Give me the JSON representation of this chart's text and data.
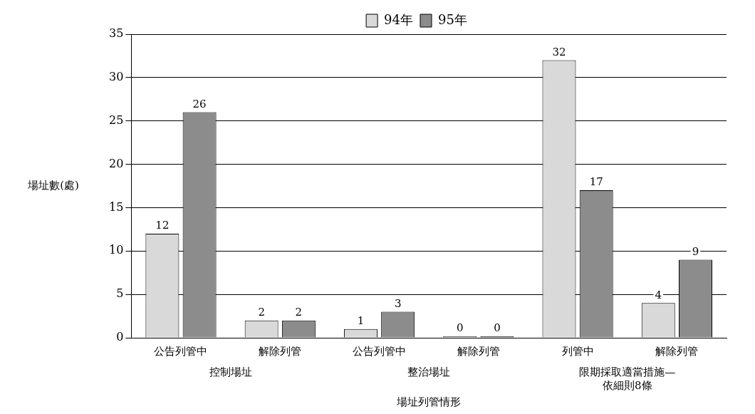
{
  "chart_data": {
    "type": "bar",
    "xlabel": "場址列管情形",
    "ylabel": "場址數(處)",
    "categories": [
      "公告列管中",
      "解除列管",
      "公告列管中",
      "解除列管",
      "列管中",
      "解除列管"
    ],
    "series": [
      {
        "name": "94年",
        "color": "#d9d9d9",
        "values": [
          12,
          2,
          1,
          0,
          32,
          4
        ]
      },
      {
        "name": "95年",
        "color": "#8c8c8c",
        "values": [
          26,
          2,
          3,
          0,
          17,
          9
        ]
      }
    ],
    "annotations": [
      "控制場址",
      "整治場址",
      "限期採取適當措施—\n依細則8條"
    ],
    "ylim": [
      0,
      35
    ],
    "yticks": [
      0,
      5,
      10,
      15,
      20,
      25,
      30,
      35
    ],
    "grid": "y",
    "legend": "top",
    "data_labels": true
  }
}
